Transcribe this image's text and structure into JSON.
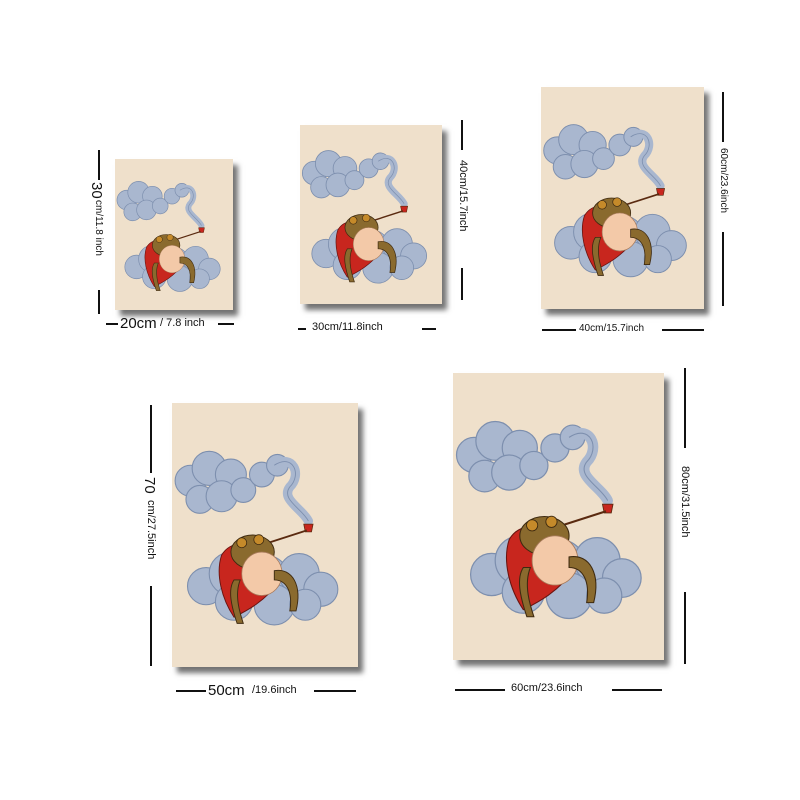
{
  "sizes": [
    {
      "id": "20x30",
      "width_label": {
        "cm": "20cm",
        "inch": "/ 7.8 inch"
      },
      "height_label": {
        "cm": "30",
        "inch": "cm/11.8 inch"
      }
    },
    {
      "id": "30x40",
      "width_label": "30cm/11.8inch",
      "height_label": "40cm/15.7inch"
    },
    {
      "id": "40x60",
      "width_label": "40cm/15.7inch",
      "height_label": "60cm/23.6inch"
    },
    {
      "id": "50x70",
      "width_label": {
        "cm": "50cm",
        "inch": "/19.6inch"
      },
      "height_label": {
        "cm": "70",
        "inch": "cm/27.5inch"
      }
    },
    {
      "id": "60x80",
      "width_label": "60cm/23.6inch",
      "height_label": "80cm/31.5inch"
    }
  ],
  "colors": {
    "canvas_bg": "#efe0cb",
    "cloud": "#a9b7cf",
    "cloud_edge": "#7d8fae",
    "frog": "#8a6a2e",
    "robe": "#c8261e",
    "belly": "#f3c9a8"
  },
  "artwork_icon": "frog-on-cloud-smoking-pipe"
}
